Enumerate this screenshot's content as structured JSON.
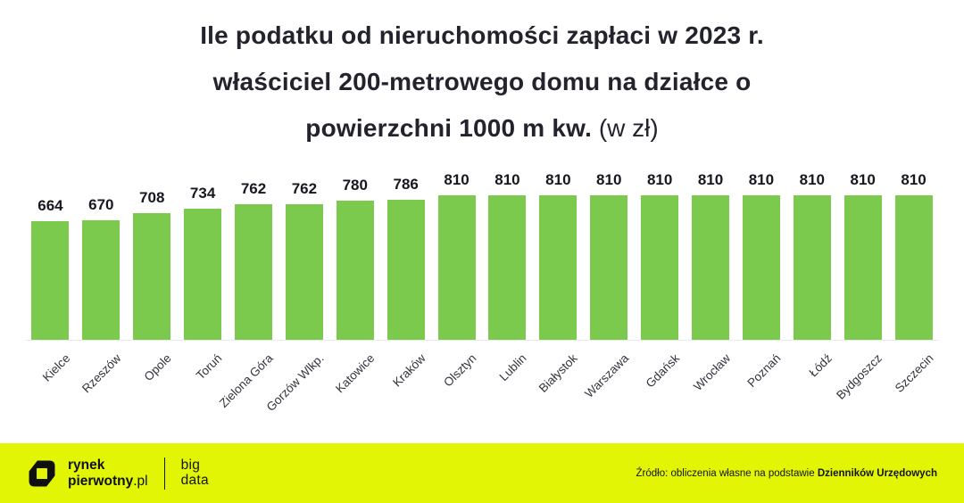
{
  "title": {
    "line1": "Ile podatku od nieruchomości zapłaci w 2023 r.",
    "line2": "właściciel 200-metrowego domu na działce o",
    "line3_bold": "powierzchni 1000 m kw.",
    "line3_unit": " (w zł)"
  },
  "chart_data": {
    "type": "bar",
    "title": "Ile podatku od nieruchomości zapłaci w 2023 r. właściciel 200-metrowego domu na działce o powierzchni 1000 m kw. (w zł)",
    "unit": "zł",
    "categories": [
      "Kielce",
      "Rzeszów",
      "Opole",
      "Toruń",
      "Zielona Góra",
      "Gorzów Wlkp.",
      "Katowice",
      "Kraków",
      "Olsztyn",
      "Lublin",
      "Białystok",
      "Warszawa",
      "Gdańsk",
      "Wrocław",
      "Poznań",
      "Łódź",
      "Bydgoszcz",
      "Szczecin"
    ],
    "values": [
      664,
      670,
      708,
      734,
      762,
      762,
      780,
      786,
      810,
      810,
      810,
      810,
      810,
      810,
      810,
      810,
      810,
      810
    ],
    "ylim": [
      0,
      810
    ],
    "grid": false,
    "legend": false,
    "value_labels_shown": true,
    "bar_color": "#7CCA4D"
  },
  "footer": {
    "brand": {
      "line1": "rynek",
      "line2_bold": "pierwotny",
      "line2_suffix": ".pl"
    },
    "bigdata": {
      "line1": "big",
      "line2": "data"
    },
    "source_prefix": "Źródło: obliczenia własne na podstawie ",
    "source_bold": "Dzienników Urzędowych"
  },
  "colors": {
    "bar_green": "#7CCA4D",
    "footer_yellow": "#E1F505",
    "title_dark": "#23232E",
    "label_gray": "#33333D",
    "baseline_gray": "#EBEBEB"
  }
}
